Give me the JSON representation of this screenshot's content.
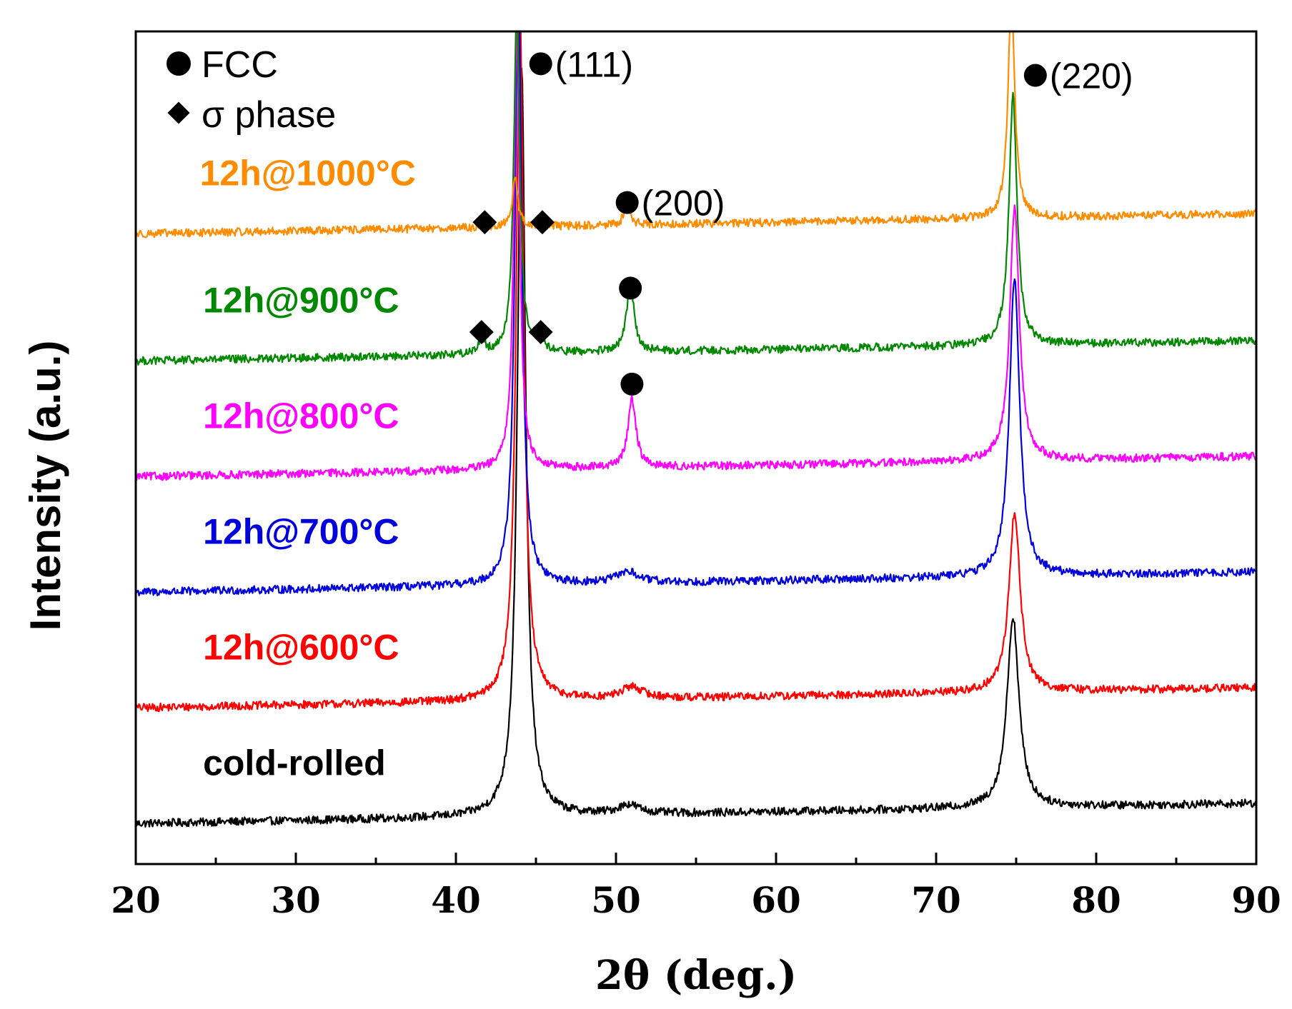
{
  "chart_data": {
    "type": "line",
    "title": "",
    "xlabel": "2θ (deg.)",
    "ylabel": "Intensity (a.u.)",
    "xlim": [
      20,
      90
    ],
    "ylim": [
      0,
      7.2
    ],
    "x_ticks": [
      20,
      30,
      40,
      50,
      60,
      70,
      80,
      90
    ],
    "x_tick_labels": [
      "20",
      "30",
      "40",
      "50",
      "60",
      "70",
      "80",
      "90"
    ],
    "minor_x_ticks": [
      25,
      35,
      45,
      55,
      65,
      75,
      85
    ],
    "grid": false,
    "legend": {
      "placement": "top-left",
      "entries": [
        {
          "marker": "circle",
          "label": "FCC"
        },
        {
          "marker": "diamond",
          "label": "σ phase"
        }
      ]
    },
    "series": [
      {
        "name": "cold-rolled",
        "label": "cold-rolled",
        "color": "#000000",
        "label_x": 24.2,
        "baseline": 0.35,
        "peaks": [
          {
            "x": 44.1,
            "height": 6.5,
            "width": 0.3
          },
          {
            "x": 50.8,
            "height": 0.08,
            "width": 0.8
          },
          {
            "x": 74.8,
            "height": 1.65,
            "width": 0.45
          }
        ]
      },
      {
        "name": "12h@600°C",
        "label": "12h@600°C",
        "color": "#ff0000",
        "label_x": 24.2,
        "baseline": 1.35,
        "peaks": [
          {
            "x": 44.0,
            "height": 6.0,
            "width": 0.28
          },
          {
            "x": 51.0,
            "height": 0.1,
            "width": 0.8
          },
          {
            "x": 74.9,
            "height": 1.55,
            "width": 0.42
          }
        ]
      },
      {
        "name": "12h@700°C",
        "label": "12h@700°C",
        "color": "#0000dd",
        "label_x": 24.2,
        "baseline": 2.35,
        "peaks": [
          {
            "x": 43.9,
            "height": 5.3,
            "width": 0.25
          },
          {
            "x": 50.7,
            "height": 0.1,
            "width": 0.8
          },
          {
            "x": 74.9,
            "height": 2.6,
            "width": 0.38
          }
        ]
      },
      {
        "name": "12h@800°C",
        "label": "12h@800°C",
        "color": "#ff00ff",
        "label_x": 24.2,
        "baseline": 3.35,
        "peaks": [
          {
            "x": 43.8,
            "height": 3.8,
            "width": 0.22
          },
          {
            "x": 51.0,
            "height": 0.6,
            "width": 0.3
          },
          {
            "x": 74.9,
            "height": 2.2,
            "width": 0.35
          }
        ]
      },
      {
        "name": "12h@900°C",
        "label": "12h@900°C",
        "color": "#008800",
        "label_x": 24.2,
        "baseline": 4.35,
        "peaks": [
          {
            "x": 41.6,
            "height": 0.12,
            "width": 0.25
          },
          {
            "x": 43.8,
            "height": 3.0,
            "width": 0.22
          },
          {
            "x": 45.3,
            "height": 0.1,
            "width": 0.25
          },
          {
            "x": 50.9,
            "height": 0.6,
            "width": 0.28
          },
          {
            "x": 74.8,
            "height": 2.15,
            "width": 0.3
          }
        ]
      },
      {
        "name": "12h@1000°C",
        "label": "12h@1000°C",
        "color": "#ff8c00",
        "label_x": 24.0,
        "baseline": 5.45,
        "peaks": [
          {
            "x": 43.7,
            "height": 0.45,
            "width": 0.2
          },
          {
            "x": 50.7,
            "height": 0.22,
            "width": 0.2
          },
          {
            "x": 74.7,
            "height": 1.9,
            "width": 0.25
          }
        ]
      }
    ],
    "annotations": [
      {
        "marker": "circle",
        "text": "(111)",
        "x": 45.3,
        "y": 6.92
      },
      {
        "marker": "circle",
        "text": "(220)",
        "x": 76.2,
        "y": 6.82
      },
      {
        "marker": "circle",
        "text": "(200)",
        "x": 50.7,
        "y": 5.72
      },
      {
        "marker": "circle",
        "text": "",
        "x": 50.9,
        "y": 4.98
      },
      {
        "marker": "circle",
        "text": "",
        "x": 51.0,
        "y": 4.15
      },
      {
        "marker": "diamond",
        "text": "",
        "x": 41.8,
        "y": 5.55
      },
      {
        "marker": "diamond",
        "text": "",
        "x": 45.4,
        "y": 5.55
      },
      {
        "marker": "diamond",
        "text": "",
        "x": 41.6,
        "y": 4.6
      },
      {
        "marker": "diamond",
        "text": "",
        "x": 45.3,
        "y": 4.6
      }
    ]
  }
}
